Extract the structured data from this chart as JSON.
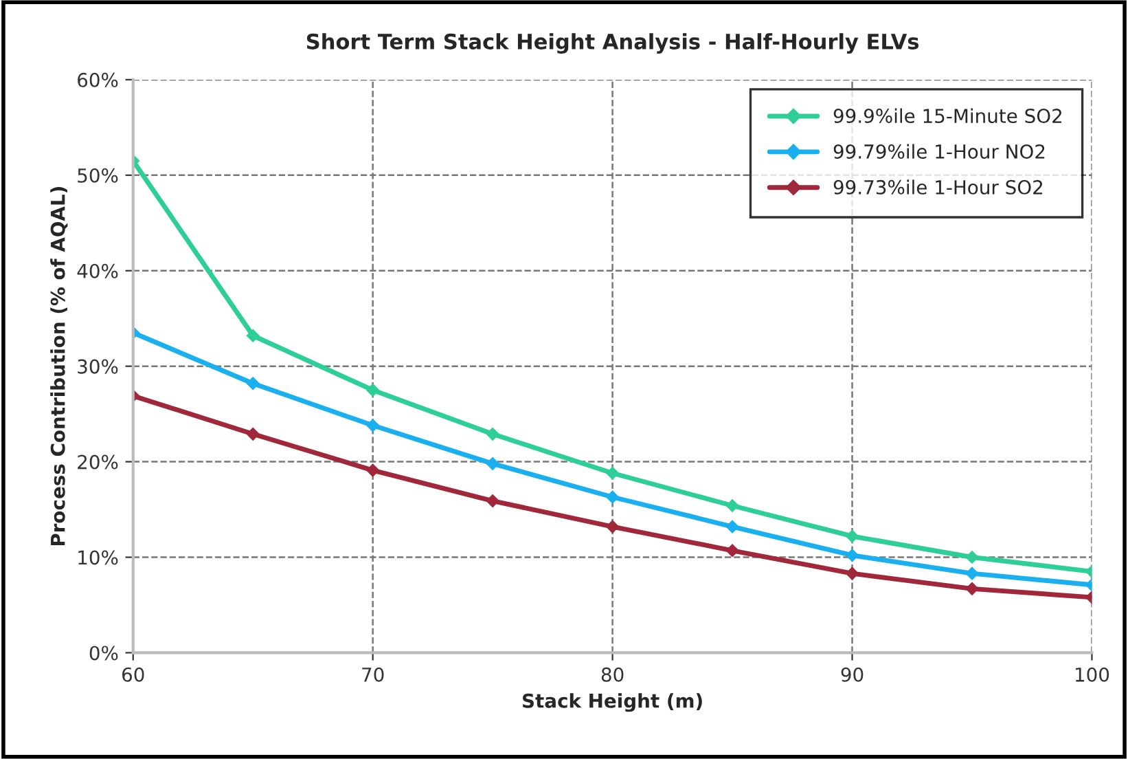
{
  "chart_data": {
    "type": "line",
    "title": "Short Term Stack Height Analysis - Half-Hourly ELVs",
    "xlabel": "Stack Height (m)",
    "ylabel": "Process Contribution (% of AQAL)",
    "x": [
      60,
      65,
      70,
      75,
      80,
      85,
      90,
      95,
      100
    ],
    "series": [
      {
        "name": "99.9%ile 15-Minute SO2",
        "color": "#2ecf97",
        "values": [
          51.5,
          33.2,
          27.5,
          22.9,
          18.8,
          15.4,
          12.2,
          10.0,
          8.5
        ]
      },
      {
        "name": "99.79%ile 1-Hour NO2",
        "color": "#1ab0f0",
        "values": [
          33.5,
          28.2,
          23.8,
          19.8,
          16.3,
          13.2,
          10.2,
          8.3,
          7.1
        ]
      },
      {
        "name": "99.73%ile 1-Hour SO2",
        "color": "#a0283a",
        "values": [
          26.9,
          22.9,
          19.1,
          15.9,
          13.2,
          10.7,
          8.3,
          6.7,
          5.8
        ]
      }
    ],
    "xlim": [
      60,
      100
    ],
    "xticks": [
      60,
      70,
      80,
      90,
      100
    ],
    "ylim": [
      0,
      60
    ],
    "yticks": [
      {
        "value": 0,
        "label": "0%"
      },
      {
        "value": 10,
        "label": "10%"
      },
      {
        "value": 20,
        "label": "20%"
      },
      {
        "value": 30,
        "label": "30%"
      },
      {
        "value": 40,
        "label": "40%"
      },
      {
        "value": 50,
        "label": "50%"
      },
      {
        "value": 60,
        "label": "60%"
      }
    ],
    "grid": true,
    "legend": "top right",
    "marker": "diamond",
    "line_style": "solid"
  }
}
